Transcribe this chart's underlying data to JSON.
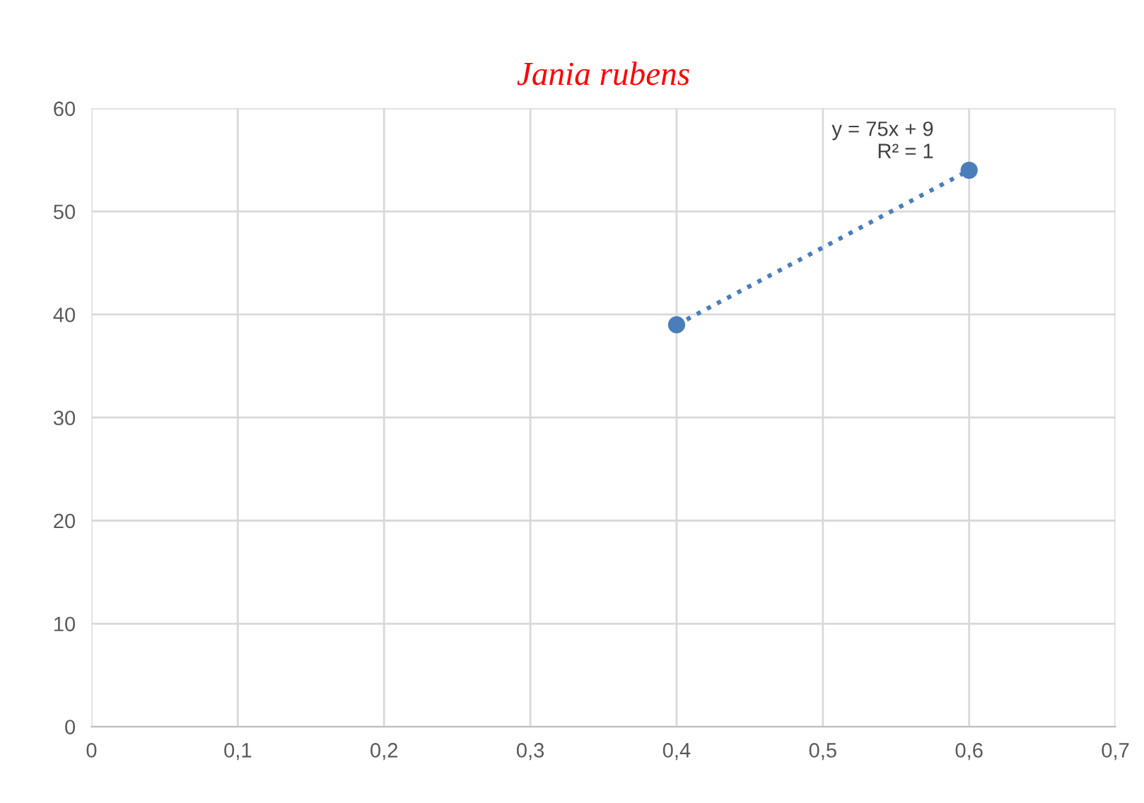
{
  "chart_data": {
    "type": "scatter",
    "title": "Jania rubens",
    "x": [
      0.4,
      0.6
    ],
    "series": [
      {
        "color": "#4a7ebb",
        "values": [
          39,
          54
        ],
        "marker": "circle"
      },
      {
        "type": "line",
        "color": "#4a7ebb",
        "values": [
          39,
          54
        ],
        "line_style": "dotted",
        "marker": "none"
      }
    ],
    "annotations": [
      {
        "text": "y = 75x + 9\nR² = 1",
        "x": 0.6,
        "y": 54
      }
    ],
    "xlim": [
      0,
      0.7
    ],
    "ylim": [
      0,
      60
    ],
    "xticks": [
      0,
      {
        "value": 0.1,
        "label": "0,1"
      },
      {
        "value": 0.2,
        "label": "0,2"
      },
      {
        "value": 0.3,
        "label": "0,3"
      },
      {
        "value": 0.4,
        "label": "0,4"
      },
      {
        "value": 0.5,
        "label": "0,5"
      },
      {
        "value": 0.6,
        "label": "0,6"
      },
      {
        "value": 0.7,
        "label": "0,7"
      }
    ],
    "yticks": [
      0,
      10,
      20,
      30,
      40,
      50,
      60
    ],
    "grid": true
  }
}
